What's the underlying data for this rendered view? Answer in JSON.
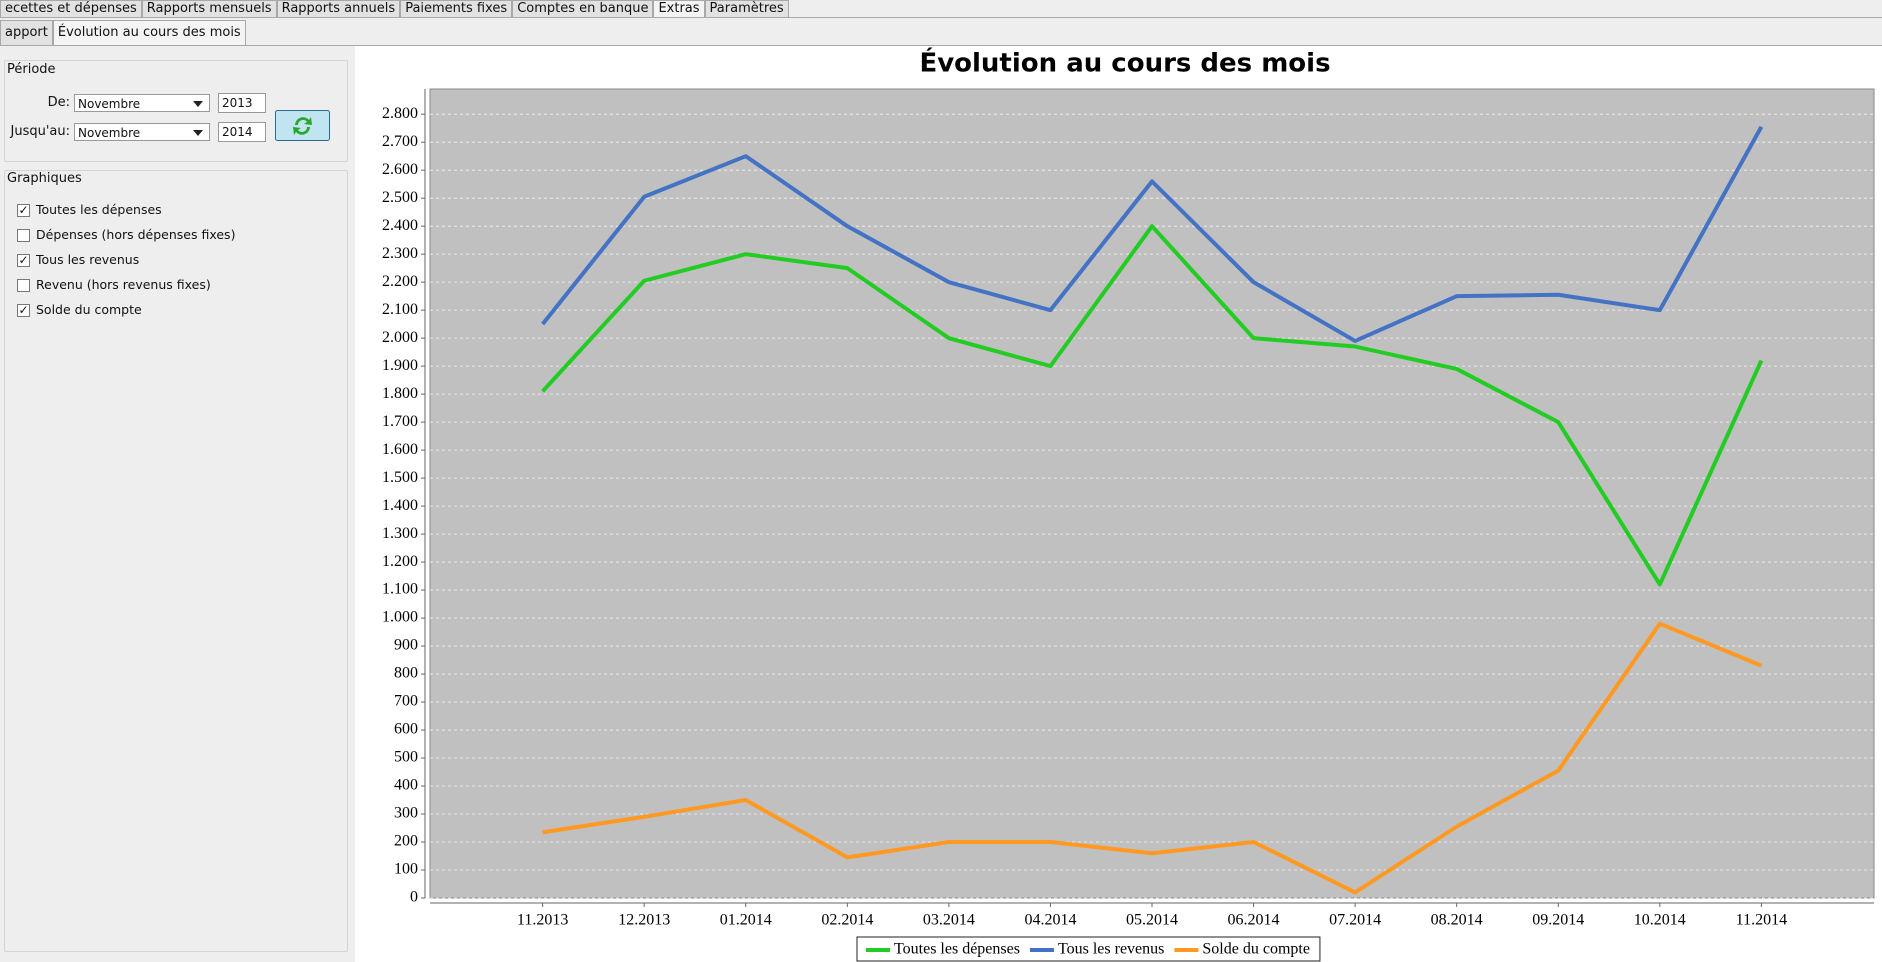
{
  "tabs": [
    "ecettes et dépenses",
    "Rapports mensuels",
    "Rapports annuels",
    "Paiements fixes",
    "Comptes en banque",
    "Extras",
    "Paramètres"
  ],
  "subtabs": [
    "apport",
    "Évolution au cours des mois"
  ],
  "period": {
    "title": "Période",
    "from_label": "De:",
    "from_month": "Novembre",
    "from_year": "2013",
    "to_label": "Jusqu'au:",
    "to_month": "Novembre",
    "to_year": "2014"
  },
  "graphs": {
    "title": "Graphiques",
    "options": [
      {
        "label": "Toutes les dépenses",
        "checked": true
      },
      {
        "label": "Dépenses (hors dépenses fixes)",
        "checked": false
      },
      {
        "label": "Tous les revenus",
        "checked": true
      },
      {
        "label": "Revenu (hors revenus fixes)",
        "checked": false
      },
      {
        "label": "Solde du compte",
        "checked": true
      }
    ]
  },
  "chart_data": {
    "type": "line",
    "title": "Évolution au cours des mois",
    "categories": [
      "11.2013",
      "12.2013",
      "01.2014",
      "02.2014",
      "03.2014",
      "04.2014",
      "05.2014",
      "06.2014",
      "07.2014",
      "08.2014",
      "09.2014",
      "10.2014",
      "11.2014"
    ],
    "series": [
      {
        "name": "Toutes les dépenses",
        "color": "#22cc22",
        "values": [
          1810,
          2205,
          2300,
          2250,
          2000,
          1900,
          2400,
          2000,
          1970,
          1890,
          1700,
          1120,
          1920
        ]
      },
      {
        "name": "Tous les revenus",
        "color": "#4472c4",
        "values": [
          2050,
          2505,
          2650,
          2400,
          2200,
          2100,
          2560,
          2200,
          1990,
          2150,
          2155,
          2100,
          2755
        ]
      },
      {
        "name": "Solde du compte",
        "color": "#ff9922",
        "values": [
          235,
          290,
          350,
          145,
          200,
          200,
          160,
          200,
          20,
          255,
          455,
          980,
          830
        ]
      }
    ],
    "ylim": [
      0,
      2890
    ],
    "yticks": [
      0,
      100,
      200,
      300,
      400,
      500,
      600,
      700,
      800,
      900,
      {
        "value": 1000,
        "label": "1.000"
      },
      {
        "value": 1100,
        "label": "1.100"
      },
      {
        "value": 1200,
        "label": "1.200"
      },
      {
        "value": 1300,
        "label": "1.300"
      },
      {
        "value": 1400,
        "label": "1.400"
      },
      {
        "value": 1500,
        "label": "1.500"
      },
      {
        "value": 1600,
        "label": "1.600"
      },
      {
        "value": 1700,
        "label": "1.700"
      },
      {
        "value": 1800,
        "label": "1.800"
      },
      {
        "value": 1900,
        "label": "1.900"
      },
      {
        "value": 2000,
        "label": "2.000"
      },
      {
        "value": 2100,
        "label": "2.100"
      },
      {
        "value": 2200,
        "label": "2.200"
      },
      {
        "value": 2300,
        "label": "2.300"
      },
      {
        "value": 2400,
        "label": "2.400"
      },
      {
        "value": 2500,
        "label": "2.500"
      },
      {
        "value": 2600,
        "label": "2.600"
      },
      {
        "value": 2700,
        "label": "2.700"
      },
      {
        "value": 2800,
        "label": "2.800"
      }
    ],
    "grid": true,
    "legend": "bottom"
  }
}
